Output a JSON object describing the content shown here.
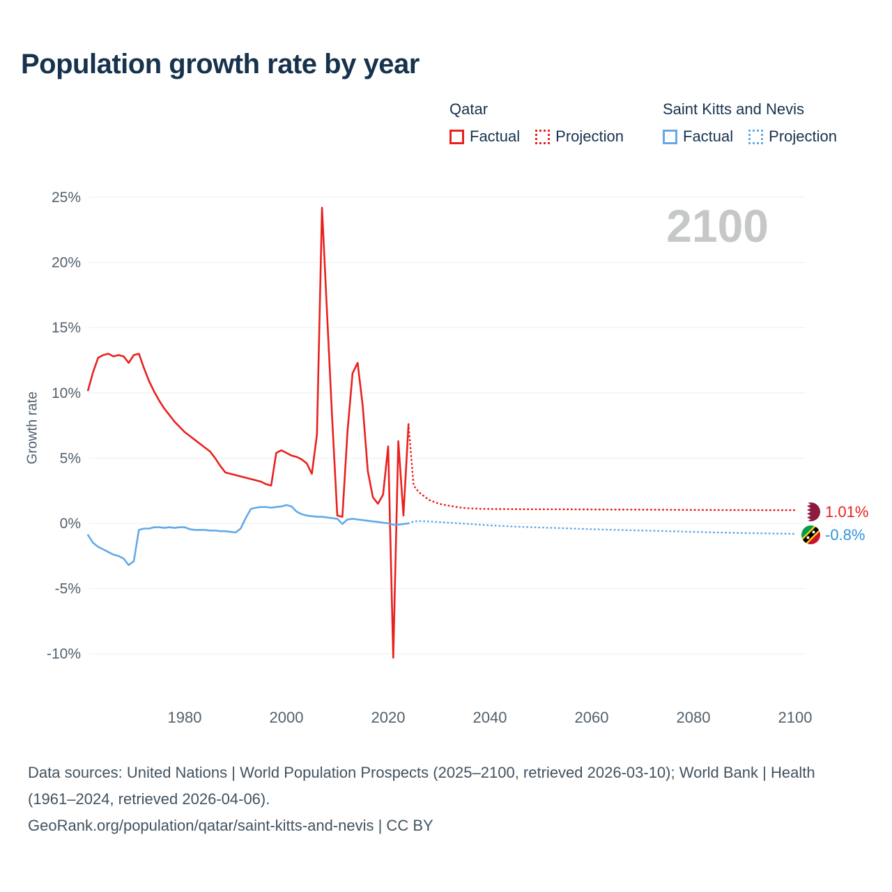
{
  "title": "Population growth rate by year",
  "watermark": "2100",
  "colors": {
    "qatar": "#e9201d",
    "saint_kitts_and_nevis": "#64a9e6",
    "grid": "#eceded",
    "axis_text": "#51606d",
    "title_text": "#16324d",
    "watermark_text": "#c5c7c9",
    "footer_text": "#42525f"
  },
  "legend": {
    "groups": [
      {
        "name": "Qatar",
        "color": "#e9201d",
        "items": [
          {
            "label": "Factual",
            "style": "solid"
          },
          {
            "label": "Projection",
            "style": "dotted"
          }
        ]
      },
      {
        "name": "Saint Kitts and Nevis",
        "color": "#64a9e6",
        "items": [
          {
            "label": "Factual",
            "style": "solid"
          },
          {
            "label": "Projection",
            "style": "dotted"
          }
        ]
      }
    ]
  },
  "end_labels": [
    {
      "text": "1.01%",
      "icon": "qatar-flag-icon",
      "color": "#e9201d"
    },
    {
      "text": "-0.8%",
      "icon": "saint-kitts-and-nevis-flag-icon",
      "color": "#2f93e0"
    }
  ],
  "footer": {
    "sources": "Data sources: United Nations | World Population Prospects (2025–2100, retrieved 2026-03-10); World Bank | Health (1961–2024, retrieved 2026-04-06).",
    "attribution": "GeoRank.org/population/qatar/saint-kitts-and-nevis | CC BY"
  },
  "chart_data": {
    "type": "line",
    "title": "Population growth rate by year",
    "xlabel": "",
    "ylabel": "Growth rate",
    "xlim": [
      1961,
      2103
    ],
    "ylim": [
      -12.5,
      26.5
    ],
    "grid": "horizontal",
    "legend_position": "top-right",
    "yticks": [
      25,
      20,
      15,
      10,
      5,
      0,
      -5,
      -10
    ],
    "xticks": [
      1980,
      2000,
      2020,
      2040,
      2060,
      2080,
      2100
    ],
    "series": [
      {
        "id": "qatar-factual",
        "name": "Qatar Factual",
        "color": "#e9201d",
        "style": "solid",
        "points": [
          [
            1961,
            10.2
          ],
          [
            1962,
            11.6
          ],
          [
            1963,
            12.7
          ],
          [
            1964,
            12.9
          ],
          [
            1965,
            13.0
          ],
          [
            1966,
            12.8
          ],
          [
            1967,
            12.9
          ],
          [
            1968,
            12.8
          ],
          [
            1969,
            12.3
          ],
          [
            1970,
            12.9
          ],
          [
            1971,
            13.0
          ],
          [
            1972,
            11.9
          ],
          [
            1973,
            10.9
          ],
          [
            1974,
            10.1
          ],
          [
            1975,
            9.4
          ],
          [
            1976,
            8.8
          ],
          [
            1977,
            8.3
          ],
          [
            1978,
            7.8
          ],
          [
            1979,
            7.4
          ],
          [
            1980,
            7.0
          ],
          [
            1981,
            6.7
          ],
          [
            1982,
            6.4
          ],
          [
            1983,
            6.1
          ],
          [
            1984,
            5.8
          ],
          [
            1985,
            5.5
          ],
          [
            1986,
            5.0
          ],
          [
            1987,
            4.4
          ],
          [
            1988,
            3.9
          ],
          [
            1989,
            3.8
          ],
          [
            1990,
            3.7
          ],
          [
            1991,
            3.6
          ],
          [
            1992,
            3.5
          ],
          [
            1993,
            3.4
          ],
          [
            1994,
            3.3
          ],
          [
            1995,
            3.2
          ],
          [
            1996,
            3.0
          ],
          [
            1997,
            2.9
          ],
          [
            1998,
            5.4
          ],
          [
            1999,
            5.6
          ],
          [
            2000,
            5.4
          ],
          [
            2001,
            5.2
          ],
          [
            2002,
            5.1
          ],
          [
            2003,
            4.9
          ],
          [
            2004,
            4.6
          ],
          [
            2005,
            3.8
          ],
          [
            2006,
            6.8
          ],
          [
            2007,
            24.2
          ],
          [
            2008,
            16.0
          ],
          [
            2009,
            8.0
          ],
          [
            2010,
            0.6
          ],
          [
            2011,
            0.5
          ],
          [
            2012,
            7.0
          ],
          [
            2013,
            11.5
          ],
          [
            2014,
            12.3
          ],
          [
            2015,
            9.0
          ],
          [
            2016,
            4.0
          ],
          [
            2017,
            2.0
          ],
          [
            2018,
            1.5
          ],
          [
            2019,
            2.2
          ],
          [
            2020,
            5.9
          ],
          [
            2021,
            -10.3
          ],
          [
            2022,
            6.3
          ],
          [
            2023,
            0.6
          ],
          [
            2024,
            7.6
          ]
        ]
      },
      {
        "id": "qatar-projection",
        "name": "Qatar Projection",
        "color": "#e9201d",
        "style": "dotted",
        "points": [
          [
            2024,
            7.6
          ],
          [
            2025,
            2.9
          ],
          [
            2026,
            2.4
          ],
          [
            2027,
            2.1
          ],
          [
            2028,
            1.8
          ],
          [
            2029,
            1.65
          ],
          [
            2030,
            1.5
          ],
          [
            2031,
            1.42
          ],
          [
            2032,
            1.35
          ],
          [
            2033,
            1.28
          ],
          [
            2034,
            1.22
          ],
          [
            2035,
            1.18
          ],
          [
            2036,
            1.15
          ],
          [
            2038,
            1.12
          ],
          [
            2040,
            1.1
          ],
          [
            2045,
            1.09
          ],
          [
            2050,
            1.08
          ],
          [
            2055,
            1.08
          ],
          [
            2060,
            1.07
          ],
          [
            2065,
            1.06
          ],
          [
            2070,
            1.05
          ],
          [
            2075,
            1.04
          ],
          [
            2080,
            1.03
          ],
          [
            2085,
            1.02
          ],
          [
            2090,
            1.02
          ],
          [
            2095,
            1.01
          ],
          [
            2100,
            1.01
          ]
        ]
      },
      {
        "id": "saint-kitts-and-nevis-factual",
        "name": "Saint Kitts and Nevis Factual",
        "color": "#64a9e6",
        "style": "solid",
        "points": [
          [
            1961,
            -0.9
          ],
          [
            1962,
            -1.5
          ],
          [
            1963,
            -1.8
          ],
          [
            1964,
            -2.0
          ],
          [
            1965,
            -2.2
          ],
          [
            1966,
            -2.4
          ],
          [
            1967,
            -2.5
          ],
          [
            1968,
            -2.7
          ],
          [
            1969,
            -3.2
          ],
          [
            1970,
            -2.9
          ],
          [
            1971,
            -0.5
          ],
          [
            1972,
            -0.4
          ],
          [
            1973,
            -0.4
          ],
          [
            1974,
            -0.3
          ],
          [
            1975,
            -0.3
          ],
          [
            1976,
            -0.35
          ],
          [
            1977,
            -0.3
          ],
          [
            1978,
            -0.35
          ],
          [
            1979,
            -0.3
          ],
          [
            1980,
            -0.3
          ],
          [
            1981,
            -0.45
          ],
          [
            1982,
            -0.5
          ],
          [
            1983,
            -0.5
          ],
          [
            1984,
            -0.5
          ],
          [
            1985,
            -0.55
          ],
          [
            1986,
            -0.55
          ],
          [
            1987,
            -0.6
          ],
          [
            1988,
            -0.6
          ],
          [
            1989,
            -0.65
          ],
          [
            1990,
            -0.7
          ],
          [
            1991,
            -0.4
          ],
          [
            1992,
            0.4
          ],
          [
            1993,
            1.1
          ],
          [
            1994,
            1.2
          ],
          [
            1995,
            1.25
          ],
          [
            1996,
            1.25
          ],
          [
            1997,
            1.2
          ],
          [
            1998,
            1.25
          ],
          [
            1999,
            1.3
          ],
          [
            2000,
            1.4
          ],
          [
            2001,
            1.3
          ],
          [
            2002,
            0.9
          ],
          [
            2003,
            0.7
          ],
          [
            2004,
            0.6
          ],
          [
            2005,
            0.55
          ],
          [
            2006,
            0.5
          ],
          [
            2007,
            0.5
          ],
          [
            2008,
            0.45
          ],
          [
            2009,
            0.4
          ],
          [
            2010,
            0.35
          ],
          [
            2011,
            -0.05
          ],
          [
            2012,
            0.3
          ],
          [
            2013,
            0.35
          ],
          [
            2014,
            0.3
          ],
          [
            2015,
            0.25
          ],
          [
            2016,
            0.2
          ],
          [
            2017,
            0.15
          ],
          [
            2018,
            0.1
          ],
          [
            2019,
            0.05
          ],
          [
            2020,
            0.0
          ],
          [
            2021,
            -0.1
          ],
          [
            2022,
            -0.1
          ],
          [
            2023,
            -0.05
          ],
          [
            2024,
            0.0
          ]
        ]
      },
      {
        "id": "saint-kitts-and-nevis-projection",
        "name": "Saint Kitts and Nevis Projection",
        "color": "#64a9e6",
        "style": "dotted",
        "points": [
          [
            2024,
            0.0
          ],
          [
            2025,
            0.15
          ],
          [
            2026,
            0.18
          ],
          [
            2028,
            0.15
          ],
          [
            2030,
            0.1
          ],
          [
            2032,
            0.05
          ],
          [
            2034,
            0.0
          ],
          [
            2036,
            -0.05
          ],
          [
            2038,
            -0.1
          ],
          [
            2040,
            -0.15
          ],
          [
            2045,
            -0.25
          ],
          [
            2050,
            -0.32
          ],
          [
            2055,
            -0.38
          ],
          [
            2060,
            -0.45
          ],
          [
            2065,
            -0.5
          ],
          [
            2070,
            -0.55
          ],
          [
            2075,
            -0.6
          ],
          [
            2080,
            -0.65
          ],
          [
            2085,
            -0.7
          ],
          [
            2090,
            -0.74
          ],
          [
            2095,
            -0.77
          ],
          [
            2100,
            -0.8
          ]
        ]
      }
    ]
  }
}
